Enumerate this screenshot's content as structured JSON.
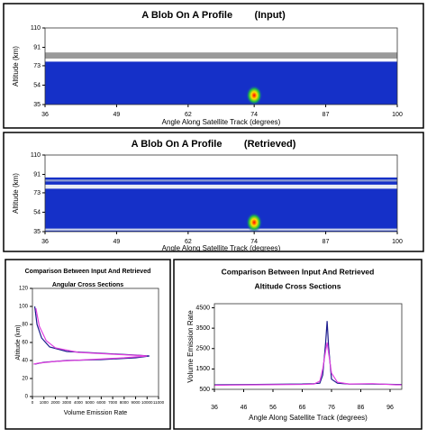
{
  "chart_data": [
    {
      "type": "heatmap",
      "title": "A Blob On A Profile        (Input)",
      "xlabel": "Angle Along Satellite Track (degrees)",
      "ylabel": "Altitude (km)",
      "xlim": [
        36,
        100
      ],
      "xticks": [
        36,
        49,
        62,
        74,
        87,
        100
      ],
      "ylim": [
        35,
        110
      ],
      "yticks": [
        35,
        54,
        73,
        91,
        110
      ],
      "bands": [
        {
          "from": 80,
          "to": 86,
          "color": "#9a9a9a"
        },
        {
          "from": 35,
          "to": 77,
          "color": "#1530c8"
        }
      ],
      "blob": {
        "x": 74,
        "y": 44
      }
    },
    {
      "type": "heatmap",
      "title": "A Blob On A Profile        (Retrieved)",
      "xlabel": "Angle Along Satellite Track (degrees)",
      "ylabel": "Altitude (km)",
      "xlim": [
        36,
        100
      ],
      "xticks": [
        36,
        49,
        62,
        74,
        87,
        100
      ],
      "ylim": [
        35,
        110
      ],
      "yticks": [
        35,
        54,
        73,
        91,
        110
      ],
      "bands": [
        {
          "from": 35,
          "to": 88,
          "color": "#1530c8"
        },
        {
          "from": 84,
          "to": 86,
          "color": "#8a9ad0"
        },
        {
          "from": 77,
          "to": 81,
          "color": "#e8ecf4"
        },
        {
          "from": 36,
          "to": 38,
          "color": "#c8d0e8"
        }
      ],
      "blob": {
        "x": 74,
        "y": 44
      }
    },
    {
      "type": "line",
      "title": [
        "Comparison Between Input And Retrieved",
        "Angular Cross Sections"
      ],
      "xlabel": "Volume Emission Rate",
      "ylabel": "Altitude (km)",
      "xlim": [
        0,
        11000
      ],
      "xticks": [
        0,
        1000,
        2000,
        3000,
        4000,
        5000,
        6000,
        7000,
        8000,
        9000,
        10000,
        11000
      ],
      "ylim": [
        0,
        120
      ],
      "yticks": [
        0,
        20,
        40,
        60,
        80,
        100,
        120
      ],
      "series": [
        {
          "color": "#1a1a8c",
          "x": [
            200,
            400,
            800,
            1500,
            3000,
            6000,
            9000,
            10200,
            9000,
            6000,
            3000,
            1000,
            200
          ],
          "values": [
            100,
            80,
            65,
            55,
            50,
            48,
            46,
            45,
            43,
            41,
            40,
            38,
            36
          ]
        },
        {
          "color": "#e040e0",
          "x": [
            300,
            600,
            1200,
            2000,
            4000,
            7000,
            9500,
            10000,
            8000,
            5000,
            2000,
            500,
            100
          ],
          "values": [
            98,
            78,
            62,
            54,
            49,
            47,
            45.5,
            45,
            43,
            41,
            39,
            37,
            36
          ]
        }
      ]
    },
    {
      "type": "line",
      "title": [
        "Comparison Between Input And Retrieved",
        "Altitude Cross Sections"
      ],
      "xlabel": "Angle Along Satellite Track (degrees)",
      "ylabel": "Volume Emission Rate",
      "xlim": [
        36,
        100
      ],
      "xticks": [
        36,
        46,
        56,
        66,
        76,
        86,
        96
      ],
      "ylim": [
        500,
        4700
      ],
      "yticks": [
        500,
        1500,
        2500,
        3500,
        4500
      ],
      "series": [
        {
          "color": "#1a1a8c",
          "x": [
            36,
            50,
            66,
            70,
            72,
            73,
            74,
            74.5,
            75,
            76,
            78,
            82,
            90,
            98,
            100
          ],
          "values": [
            720,
            740,
            760,
            780,
            800,
            1200,
            2800,
            3850,
            2600,
            1000,
            800,
            760,
            760,
            740,
            740
          ]
        },
        {
          "color": "#e040e0",
          "x": [
            36,
            50,
            66,
            70,
            72,
            73,
            74,
            74.5,
            75,
            76,
            78,
            82,
            90,
            98,
            100
          ],
          "values": [
            700,
            720,
            740,
            760,
            900,
            1500,
            2400,
            2800,
            2300,
            1300,
            850,
            760,
            780,
            720,
            720
          ]
        }
      ]
    }
  ]
}
